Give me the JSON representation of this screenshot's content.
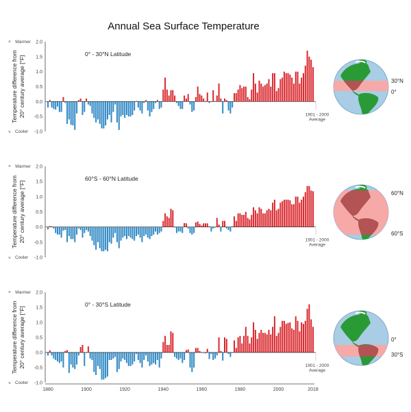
{
  "chart_data": {
    "type": "bar",
    "title": "Annual Sea Surface Temperature",
    "ylabel_lines": [
      "Temperature difference from",
      "20° century average [°F]"
    ],
    "warmer_label": "Warmer",
    "cooler_label": "Cooler",
    "baseline_label_lines": [
      "1901 - 2000",
      "Average"
    ],
    "ylim": [
      -1.0,
      2.0
    ],
    "yticks": [
      "2.0",
      "1.5",
      "1.0",
      "0.5",
      "0.0",
      "-0.5",
      "-1.0"
    ],
    "x_start": 1880,
    "x_end": 2018,
    "xticks": [
      "1880",
      "1900",
      "1920",
      "1940",
      "1960",
      "1980",
      "2000",
      "2018"
    ],
    "colors": {
      "positive": "#d9262c",
      "negative": "#2e88c5",
      "ocean": "#a8cde4",
      "land": "#2a9a36",
      "band": "#f7a9a8",
      "band_land": "#b45353"
    },
    "panels": [
      {
        "title": "0° - 30°N Latitude",
        "lat_labels": [
          "30°N",
          "0°"
        ],
        "values": [
          -0.2,
          0.05,
          -0.2,
          -0.25,
          -0.27,
          -0.17,
          -0.35,
          -0.35,
          0.15,
          -0.05,
          -0.75,
          -0.6,
          -0.78,
          -0.8,
          -0.95,
          -0.4,
          0.05,
          0.1,
          -0.45,
          -0.35,
          0.1,
          -0.1,
          -0.15,
          -0.4,
          -0.55,
          -0.7,
          -0.6,
          -0.75,
          -0.9,
          -0.9,
          -0.8,
          -0.6,
          -0.45,
          -0.7,
          -0.35,
          -0.1,
          -0.7,
          -0.95,
          -0.5,
          -0.45,
          -0.55,
          -0.45,
          -0.5,
          -0.5,
          -0.45,
          -0.3,
          0.02,
          -0.2,
          -0.3,
          -0.4,
          -0.05,
          0.05,
          -0.3,
          -0.5,
          -0.35,
          -0.25,
          -0.05,
          0.05,
          -0.25,
          -0.2,
          0.4,
          0.8,
          0.4,
          0.2,
          0.38,
          0.38,
          0.2,
          -0.05,
          -0.15,
          -0.25,
          -0.25,
          0.2,
          0.1,
          0.25,
          -0.1,
          -0.35,
          -0.3,
          0.15,
          0.5,
          0.25,
          0.2,
          0.1,
          0.02,
          0.3,
          -0.05,
          0.0,
          0.38,
          0.02,
          0.2,
          0.6,
          0.1,
          -0.4,
          0.1,
          0.05,
          -0.3,
          -0.4,
          -0.2,
          0.28,
          0.28,
          0.4,
          0.55,
          0.45,
          0.5,
          0.5,
          0.15,
          0.08,
          0.4,
          0.95,
          0.6,
          0.3,
          0.7,
          0.6,
          0.5,
          0.55,
          0.6,
          0.75,
          0.5,
          0.95,
          0.95,
          0.35,
          0.45,
          0.75,
          0.8,
          1.0,
          0.95,
          0.95,
          0.9,
          0.8,
          0.6,
          1.0,
          1.0,
          0.6,
          0.8,
          0.95,
          1.2,
          1.7,
          1.5,
          1.4,
          1.15
        ]
      },
      {
        "title": "60°S - 60°N Latitude",
        "lat_labels": [
          "60°N",
          "60°S"
        ],
        "values": [
          -0.08,
          0.03,
          0.02,
          -0.05,
          -0.2,
          -0.25,
          -0.25,
          -0.35,
          -0.12,
          -0.1,
          -0.5,
          -0.3,
          -0.4,
          -0.4,
          -0.5,
          -0.25,
          -0.05,
          -0.1,
          -0.35,
          -0.2,
          -0.1,
          -0.15,
          -0.3,
          -0.45,
          -0.6,
          -0.75,
          -0.5,
          -0.7,
          -0.8,
          -0.8,
          -0.75,
          -0.8,
          -0.5,
          -0.55,
          -0.35,
          -0.2,
          -0.5,
          -0.7,
          -0.45,
          -0.35,
          -0.3,
          -0.4,
          -0.3,
          -0.35,
          -0.4,
          -0.45,
          -0.3,
          -0.25,
          -0.35,
          -0.5,
          -0.3,
          -0.25,
          -0.35,
          -0.4,
          -0.3,
          -0.25,
          -0.15,
          -0.25,
          -0.2,
          -0.15,
          0.2,
          0.45,
          0.35,
          0.3,
          0.6,
          0.55,
          -0.02,
          -0.2,
          -0.15,
          -0.15,
          -0.2,
          0.13,
          0.12,
          -0.05,
          -0.2,
          -0.25,
          -0.2,
          0.15,
          0.18,
          0.1,
          0.05,
          0.12,
          0.12,
          0.12,
          0.02,
          -0.15,
          -0.05,
          -0.02,
          0.3,
          0.08,
          -0.15,
          0.2,
          0.2,
          -0.05,
          -0.1,
          -0.15,
          0.02,
          0.35,
          0.2,
          0.45,
          0.45,
          0.4,
          0.4,
          0.5,
          0.3,
          0.25,
          0.4,
          0.65,
          0.55,
          0.45,
          0.65,
          0.6,
          0.45,
          0.45,
          0.55,
          0.6,
          0.55,
          0.8,
          0.9,
          0.55,
          0.6,
          0.8,
          0.85,
          0.9,
          0.9,
          0.9,
          0.88,
          0.75,
          0.75,
          1.0,
          1.0,
          0.8,
          0.9,
          1.0,
          1.15,
          1.35,
          1.35,
          1.2,
          1.18
        ]
      },
      {
        "title": "0° - 30°S Latitude",
        "lat_labels": [
          "0°",
          "30°S"
        ],
        "values": [
          -0.1,
          0.07,
          -0.1,
          -0.2,
          -0.25,
          -0.3,
          -0.35,
          -0.3,
          -0.5,
          0.05,
          0.08,
          -0.68,
          -0.4,
          -0.5,
          -0.55,
          -0.4,
          -0.1,
          0.18,
          0.25,
          -0.45,
          0.0,
          0.2,
          -0.2,
          -0.25,
          -0.65,
          -0.75,
          -0.45,
          -0.55,
          -0.9,
          -0.9,
          -0.85,
          -0.8,
          -0.25,
          -0.25,
          -0.2,
          -0.15,
          -0.65,
          -0.55,
          -0.3,
          -0.2,
          -0.25,
          -0.35,
          -0.45,
          -0.45,
          -0.4,
          -0.3,
          -0.05,
          -0.25,
          -0.35,
          -0.5,
          -0.25,
          -0.1,
          -0.3,
          -0.45,
          -0.4,
          -0.35,
          -0.4,
          -0.25,
          -0.5,
          -0.2,
          0.35,
          0.55,
          0.25,
          0.25,
          0.7,
          0.65,
          -0.15,
          -0.2,
          -0.25,
          -0.2,
          -0.35,
          -0.25,
          0.08,
          0.1,
          -0.5,
          -0.65,
          -0.5,
          0.15,
          0.15,
          0.05,
          0.0,
          0.0,
          -0.03,
          0.12,
          -0.22,
          -0.05,
          -0.25,
          -0.2,
          -0.1,
          0.5,
          0.05,
          -0.27,
          0.5,
          0.45,
          -0.05,
          -0.15,
          0.0,
          0.4,
          0.15,
          0.5,
          0.55,
          0.3,
          0.55,
          0.85,
          0.55,
          0.3,
          0.5,
          1.0,
          0.75,
          0.45,
          0.65,
          0.75,
          0.65,
          0.65,
          0.6,
          0.75,
          0.6,
          0.85,
          1.2,
          0.55,
          0.65,
          0.85,
          1.05,
          1.05,
          0.95,
          0.98,
          1.0,
          0.8,
          0.75,
          1.2,
          1.05,
          0.7,
          1.0,
          0.95,
          1.05,
          1.45,
          1.6,
          1.1,
          0.85
        ]
      }
    ]
  }
}
